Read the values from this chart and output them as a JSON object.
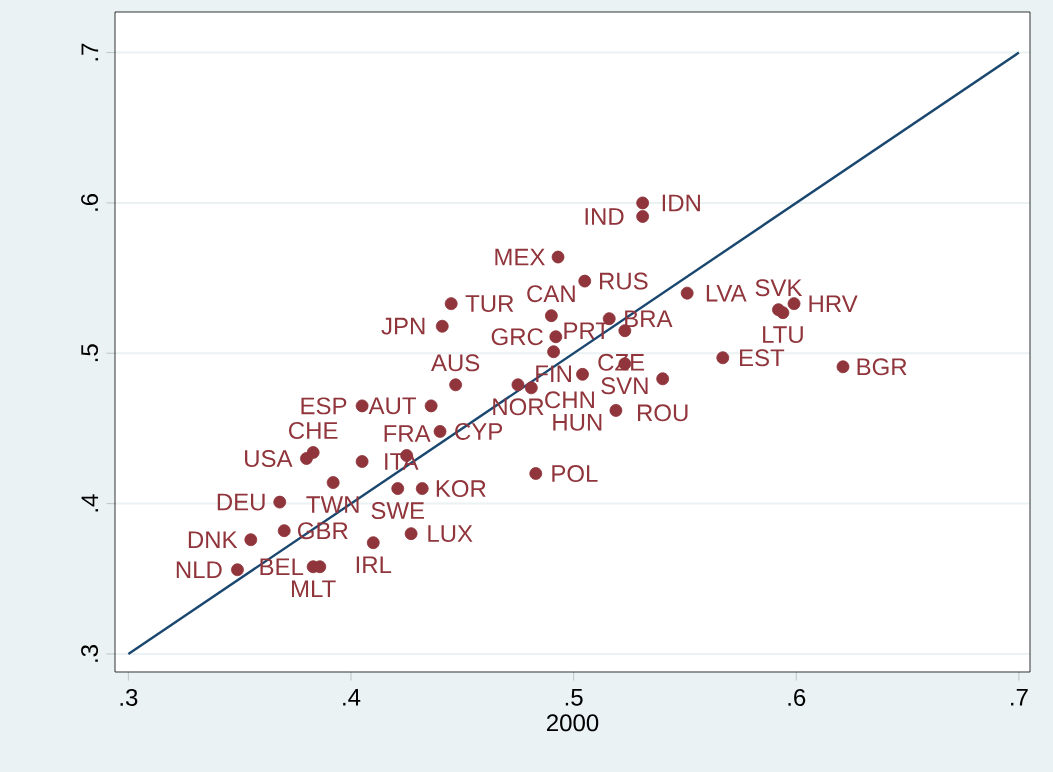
{
  "chart_data": {
    "type": "scatter",
    "xlabel": "2000",
    "xlim": [
      0.294,
      0.705
    ],
    "ylim": [
      0.288,
      0.727
    ],
    "xticks": [
      {
        "value": 0.3,
        "label": ".3"
      },
      {
        "value": 0.4,
        "label": ".4"
      },
      {
        "value": 0.5,
        "label": ".5"
      },
      {
        "value": 0.6,
        "label": ".6"
      },
      {
        "value": 0.7,
        "label": ".7"
      }
    ],
    "yticks": [
      {
        "value": 0.3,
        "label": ".3"
      },
      {
        "value": 0.4,
        "label": ".4"
      },
      {
        "value": 0.5,
        "label": ".5"
      },
      {
        "value": 0.6,
        "label": ".6"
      },
      {
        "value": 0.7,
        "label": ".7"
      }
    ],
    "grid": "y",
    "marker": "circle",
    "series": [
      {
        "color": "#90353b",
        "x": [
          0.531,
          0.531,
          0.493,
          0.505,
          0.551,
          0.445,
          0.441,
          0.49,
          0.516,
          0.492,
          0.523,
          0.491,
          0.523,
          0.504,
          0.54,
          0.519,
          0.447,
          0.475,
          0.481,
          0.436,
          0.405,
          0.44,
          0.567,
          0.621,
          0.599,
          0.592,
          0.594,
          0.383,
          0.38,
          0.405,
          0.425,
          0.392,
          0.421,
          0.432,
          0.368,
          0.37,
          0.355,
          0.41,
          0.427,
          0.349,
          0.383,
          0.386,
          0.483
        ],
        "values": [
          0.6,
          0.591,
          0.564,
          0.548,
          0.54,
          0.533,
          0.518,
          0.525,
          0.523,
          0.511,
          0.515,
          0.501,
          0.493,
          0.486,
          0.483,
          0.462,
          0.479,
          0.479,
          0.477,
          0.465,
          0.465,
          0.448,
          0.497,
          0.491,
          0.533,
          0.529,
          0.527,
          0.434,
          0.43,
          0.428,
          0.432,
          0.414,
          0.41,
          0.41,
          0.401,
          0.382,
          0.376,
          0.374,
          0.38,
          0.356,
          0.358,
          0.358,
          0.42
        ]
      },
      {
        "type": "line",
        "marker": "none",
        "color": "#1a476f",
        "x": [
          0.3,
          0.7
        ],
        "values": [
          0.3,
          0.7
        ]
      }
    ],
    "annotations": [
      {
        "text": "IDN",
        "x": 0.531,
        "y": 0.6
      },
      {
        "text": "IND",
        "x": 0.531,
        "y": 0.591
      },
      {
        "text": "MEX",
        "x": 0.493,
        "y": 0.564
      },
      {
        "text": "RUS",
        "x": 0.505,
        "y": 0.548
      },
      {
        "text": "LVA",
        "x": 0.551,
        "y": 0.54
      },
      {
        "text": "TUR",
        "x": 0.445,
        "y": 0.533
      },
      {
        "text": "JPN",
        "x": 0.441,
        "y": 0.518
      },
      {
        "text": "CAN",
        "x": 0.49,
        "y": 0.525
      },
      {
        "text": "BRA",
        "x": 0.516,
        "y": 0.523
      },
      {
        "text": "GRC",
        "x": 0.492,
        "y": 0.511
      },
      {
        "text": "PRT",
        "x": 0.523,
        "y": 0.515
      },
      {
        "text": "FIN",
        "x": 0.491,
        "y": 0.501
      },
      {
        "text": "SVN",
        "x": 0.523,
        "y": 0.493
      },
      {
        "text": "CZE",
        "x": 0.504,
        "y": 0.486
      },
      {
        "text": "ROU",
        "x": 0.54,
        "y": 0.483
      },
      {
        "text": "HUN",
        "x": 0.519,
        "y": 0.462
      },
      {
        "text": "AUS",
        "x": 0.447,
        "y": 0.479
      },
      {
        "text": "NOR",
        "x": 0.475,
        "y": 0.479
      },
      {
        "text": "CHN",
        "x": 0.481,
        "y": 0.477
      },
      {
        "text": "AUT",
        "x": 0.436,
        "y": 0.465
      },
      {
        "text": "ESP",
        "x": 0.405,
        "y": 0.465
      },
      {
        "text": "CYP",
        "x": 0.44,
        "y": 0.448
      },
      {
        "text": "EST",
        "x": 0.567,
        "y": 0.497
      },
      {
        "text": "BGR",
        "x": 0.621,
        "y": 0.491
      },
      {
        "text": "HRV",
        "x": 0.599,
        "y": 0.533
      },
      {
        "text": "SVK",
        "x": 0.592,
        "y": 0.529
      },
      {
        "text": "LTU",
        "x": 0.594,
        "y": 0.527
      },
      {
        "text": "CHE",
        "x": 0.383,
        "y": 0.434
      },
      {
        "text": "USA",
        "x": 0.38,
        "y": 0.43
      },
      {
        "text": "ITA",
        "x": 0.405,
        "y": 0.428
      },
      {
        "text": "FRA",
        "x": 0.425,
        "y": 0.432
      },
      {
        "text": "TWN",
        "x": 0.392,
        "y": 0.414
      },
      {
        "text": "SWE",
        "x": 0.421,
        "y": 0.41
      },
      {
        "text": "KOR",
        "x": 0.432,
        "y": 0.41
      },
      {
        "text": "DEU",
        "x": 0.368,
        "y": 0.401
      },
      {
        "text": "GBR",
        "x": 0.37,
        "y": 0.382
      },
      {
        "text": "DNK",
        "x": 0.355,
        "y": 0.376
      },
      {
        "text": "IRL",
        "x": 0.41,
        "y": 0.374
      },
      {
        "text": "LUX",
        "x": 0.427,
        "y": 0.38
      },
      {
        "text": "NLD",
        "x": 0.349,
        "y": 0.356
      },
      {
        "text": "MLT",
        "x": 0.383,
        "y": 0.358
      },
      {
        "text": "BEL",
        "x": 0.386,
        "y": 0.358
      },
      {
        "text": "POL",
        "x": 0.483,
        "y": 0.42
      }
    ]
  }
}
